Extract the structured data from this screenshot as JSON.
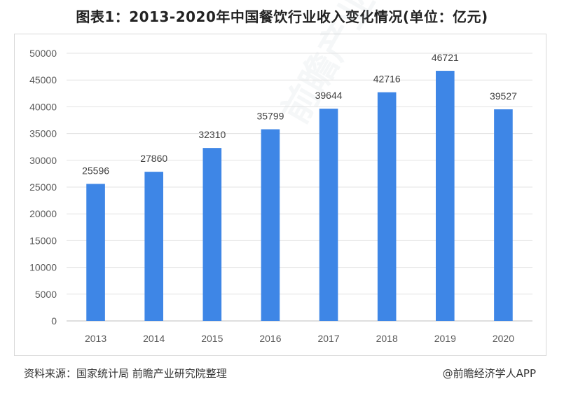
{
  "chart_data": {
    "type": "bar",
    "title": "图表1：2013-2020年中国餐饮行业收入变化情况(单位：亿元)",
    "categories": [
      "2013",
      "2014",
      "2015",
      "2016",
      "2017",
      "2018",
      "2019",
      "2020"
    ],
    "values": [
      25596,
      27860,
      32310,
      35799,
      39644,
      42716,
      46721,
      39527
    ],
    "ylim": [
      0,
      50000
    ],
    "yticks": [
      0,
      5000,
      10000,
      15000,
      20000,
      25000,
      30000,
      35000,
      40000,
      45000,
      50000
    ],
    "grid": true,
    "bar_color": "#3e86e6"
  },
  "footer": {
    "source": "资料来源：国家统计局 前瞻产业研究院整理",
    "brand": "@前瞻经济学人APP"
  },
  "watermark": "前瞻产业研究院"
}
